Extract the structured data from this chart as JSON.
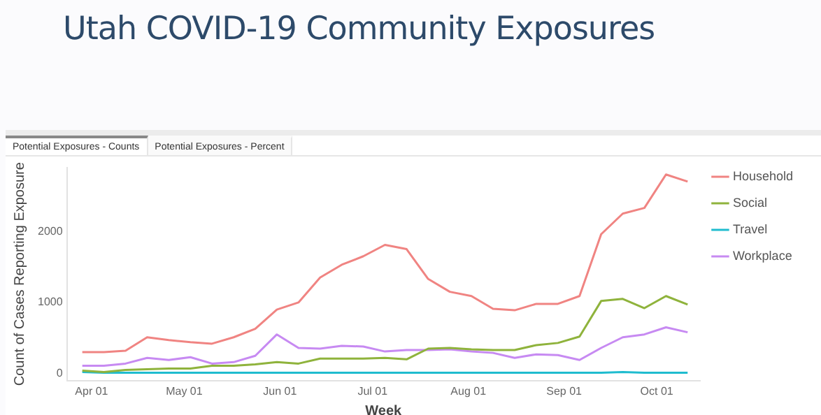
{
  "chart_data": {
    "type": "line",
    "title": "Utah COVID-19 Community Exposures",
    "annotations": [
      "Potential Exposures - Counts",
      "Potential Exposures - Percent"
    ],
    "xlabel": "Week",
    "ylabel": "Count of Cases Reporting Exposure",
    "x": [
      "--03-29",
      "--04-05",
      "--04-12",
      "--04-19",
      "--04-26",
      "--05-03",
      "--05-10",
      "--05-17",
      "--05-24",
      "--05-31",
      "--06-07",
      "--06-14",
      "--06-21",
      "--06-28",
      "--07-05",
      "--07-12",
      "--07-19",
      "--07-26",
      "--08-02",
      "--08-09",
      "--08-16",
      "--08-23",
      "--08-30",
      "--09-06",
      "--09-13",
      "--09-20",
      "--09-27",
      "--10-04",
      "--10-11"
    ],
    "series": [
      {
        "name": "Household",
        "color": "#f08482",
        "values": [
          300,
          300,
          320,
          510,
          470,
          440,
          420,
          510,
          630,
          900,
          1000,
          1350,
          1530,
          1650,
          1810,
          1750,
          1330,
          1150,
          1090,
          910,
          890,
          980,
          980,
          1090,
          1960,
          2250,
          2330,
          2800,
          2700
        ]
      },
      {
        "name": "Social",
        "color": "#8fb33c",
        "values": [
          40,
          20,
          50,
          60,
          70,
          70,
          110,
          110,
          130,
          160,
          140,
          210,
          210,
          210,
          220,
          200,
          350,
          360,
          340,
          330,
          330,
          400,
          430,
          520,
          1020,
          1050,
          920,
          1090,
          970
        ]
      },
      {
        "name": "Travel",
        "color": "#1fbccf",
        "values": [
          20,
          10,
          10,
          10,
          10,
          10,
          10,
          10,
          10,
          10,
          10,
          10,
          10,
          10,
          10,
          10,
          10,
          10,
          10,
          10,
          10,
          10,
          10,
          10,
          10,
          20,
          10,
          10,
          10
        ]
      },
      {
        "name": "Workplace",
        "color": "#c78af2",
        "values": [
          110,
          110,
          140,
          220,
          190,
          230,
          140,
          160,
          250,
          550,
          360,
          350,
          390,
          380,
          310,
          330,
          330,
          340,
          310,
          290,
          220,
          270,
          260,
          190,
          360,
          510,
          550,
          650,
          580
        ]
      }
    ],
    "xticks": [
      {
        "value": "--04-01",
        "label": "Apr 01"
      },
      {
        "value": "--05-01",
        "label": "May 01"
      },
      {
        "value": "--06-01",
        "label": "Jun 01"
      },
      {
        "value": "--07-01",
        "label": "Jul 01"
      },
      {
        "value": "--08-01",
        "label": "Aug 01"
      },
      {
        "value": "--09-01",
        "label": "Sep 01"
      },
      {
        "value": "--10-01",
        "label": "Oct 01"
      }
    ],
    "xlim": [
      "--03-24",
      "--10-15"
    ],
    "ylim": [
      -100,
      2900
    ],
    "yticks": [
      0,
      1000,
      2000
    ],
    "legend": "top right",
    "marker": "none",
    "line_style": "solid"
  }
}
